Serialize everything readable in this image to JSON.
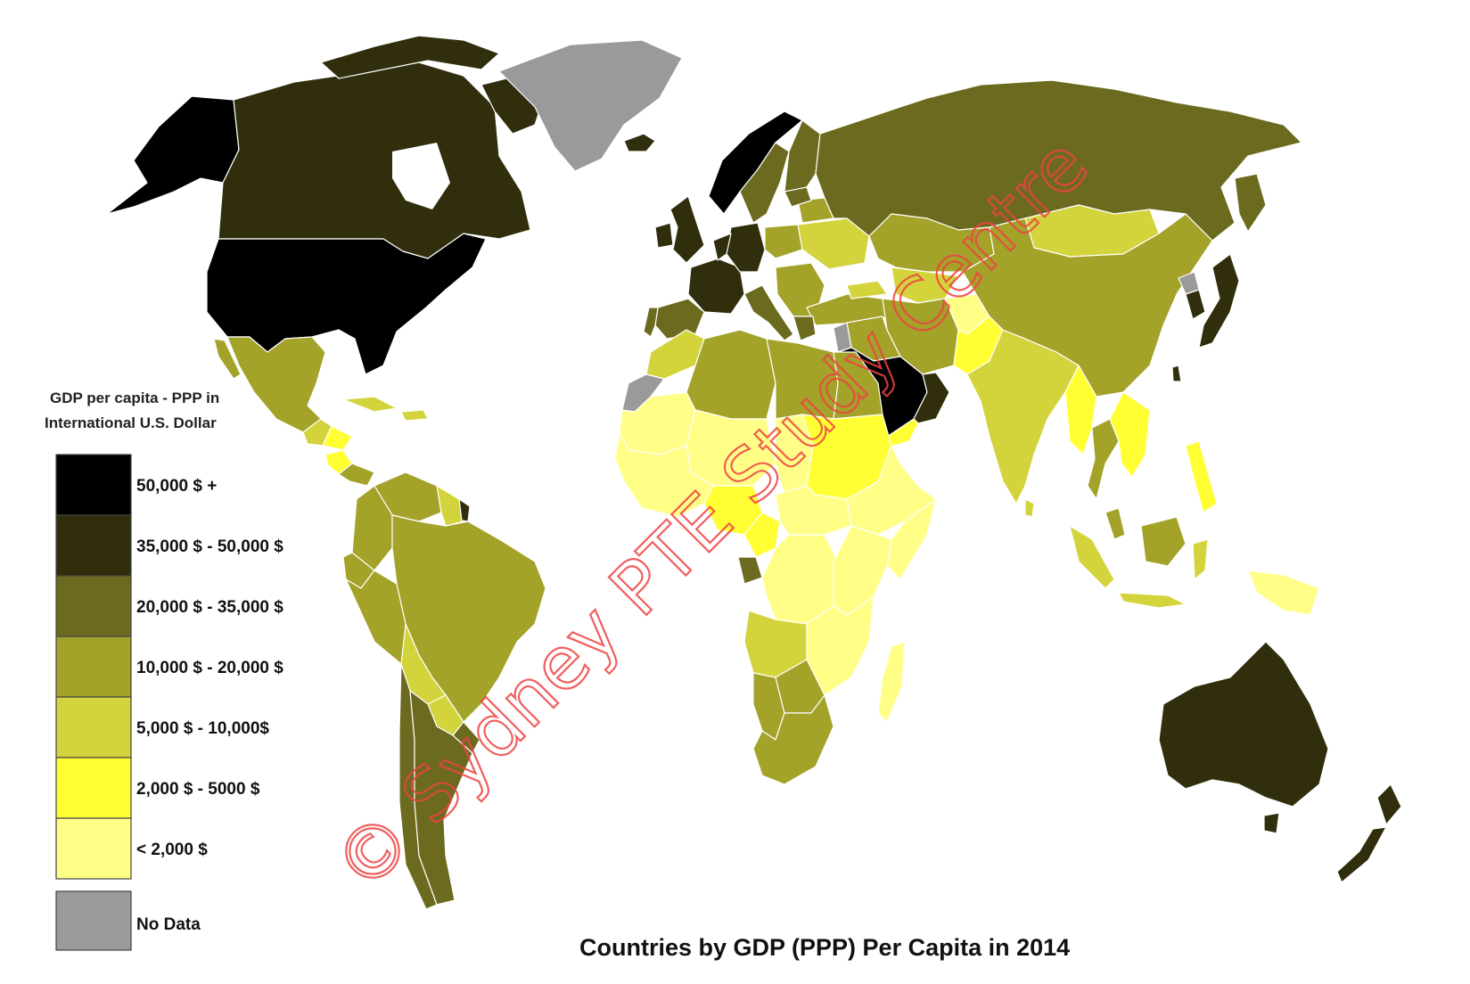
{
  "map": {
    "title": "Countries by GDP (PPP) Per Capita in 2014",
    "legend_title_line1": "GDP per capita - PPP in",
    "legend_title_line2": "International U.S. Dollar",
    "legend": [
      {
        "label": "50,000 $ +",
        "color": "#000000"
      },
      {
        "label": "35,000 $ - 50,000 $",
        "color": "#302e0c"
      },
      {
        "label": "20,000 $ - 35,000 $",
        "color": "#6b6a1e"
      },
      {
        "label": "10,000 $ - 20,000 $",
        "color": "#a3a229"
      },
      {
        "label": "5,000 $ - 10,000$",
        "color": "#d3d33c"
      },
      {
        "label": "2,000 $ - 5000 $",
        "color": "#ffff33"
      },
      {
        "label": "< 2,000 $",
        "color": "#ffff88"
      }
    ],
    "no_data": {
      "label": "No Data",
      "color": "#9a9a9a"
    }
  },
  "watermark": "© Sydney PTE Study Centre"
}
